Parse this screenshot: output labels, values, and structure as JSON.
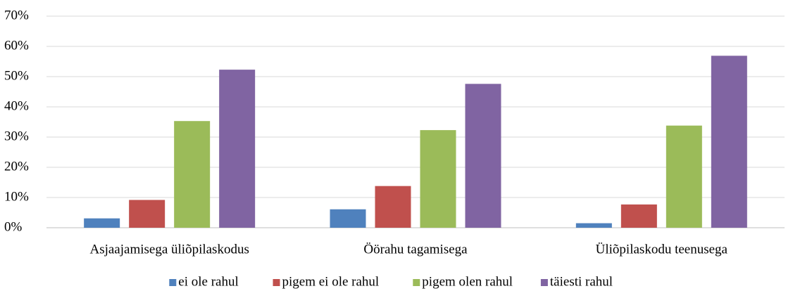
{
  "chart_data": {
    "type": "bar",
    "categories": [
      "Asjaajamisega üliõpilaskodus",
      "Öörahu tagamisega",
      "Üliõpilaskodu teenusega"
    ],
    "series": [
      {
        "name": "ei ole rahul",
        "color": "#4f81bd",
        "values": [
          3.1,
          6.1,
          1.5
        ]
      },
      {
        "name": "pigem ei ole rahul",
        "color": "#c0504d",
        "values": [
          9.2,
          13.8,
          7.7
        ]
      },
      {
        "name": "pigem olen rahul",
        "color": "#9bbb59",
        "values": [
          35.3,
          32.3,
          33.8
        ]
      },
      {
        "name": "täiesti rahul",
        "color": "#8064a2",
        "values": [
          52.3,
          47.6,
          56.9
        ]
      }
    ],
    "ylim": [
      0,
      70
    ],
    "yticks": [
      {
        "value": 0,
        "label": "0%"
      },
      {
        "value": 10,
        "label": "10%"
      },
      {
        "value": 20,
        "label": "20%"
      },
      {
        "value": 30,
        "label": "30%"
      },
      {
        "value": 40,
        "label": "40%"
      },
      {
        "value": 50,
        "label": "50%"
      },
      {
        "value": 60,
        "label": "60%"
      },
      {
        "value": 70,
        "label": "70%"
      }
    ],
    "grid": true,
    "legend": "bottom"
  }
}
